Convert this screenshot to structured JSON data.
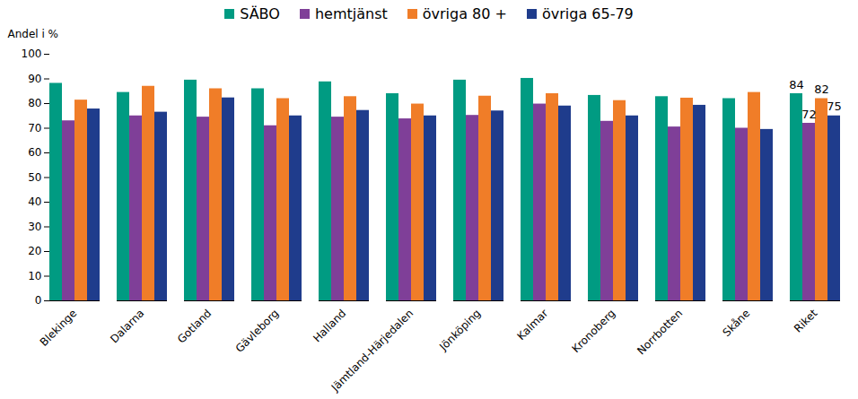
{
  "chart_data": {
    "type": "bar",
    "ylabel": "Andel i %",
    "categories": [
      "Blekinge",
      "Dalarna",
      "Gotland",
      "Gävleborg",
      "Halland",
      "Jämtland-Härjedalen",
      "Jönköping",
      "Kalmar",
      "Kronoberg",
      "Norrbotten",
      "Skåne",
      "Riket"
    ],
    "series": [
      {
        "name": "SÄBO",
        "color": "#009b82",
        "values": [
          88.2,
          84.5,
          89.5,
          86,
          88.8,
          84,
          89.5,
          90.2,
          83.3,
          82.8,
          82,
          84
        ],
        "value_labels": [
          null,
          null,
          null,
          null,
          null,
          null,
          null,
          null,
          null,
          null,
          null,
          "84"
        ]
      },
      {
        "name": "hemtjänst",
        "color": "#7f3f98",
        "values": [
          73,
          75,
          74.5,
          71,
          74.5,
          73.8,
          75.2,
          79.8,
          72.8,
          70.5,
          70,
          72
        ],
        "value_labels": [
          null,
          null,
          null,
          null,
          null,
          null,
          null,
          null,
          null,
          null,
          null,
          "72"
        ]
      },
      {
        "name": "övriga 80 +",
        "color": "#f07d28",
        "values": [
          81.4,
          87,
          86,
          82,
          82.8,
          79.8,
          83,
          84,
          81.2,
          82.2,
          84.5,
          82
        ],
        "value_labels": [
          null,
          null,
          null,
          null,
          null,
          null,
          null,
          null,
          null,
          null,
          null,
          "82"
        ]
      },
      {
        "name": "övriga 65-79",
        "color": "#1f3c8c",
        "values": [
          77.8,
          76.5,
          82.3,
          75,
          77.2,
          75,
          77,
          79,
          75,
          79.3,
          69.5,
          75
        ],
        "value_labels": [
          null,
          null,
          null,
          null,
          null,
          null,
          null,
          null,
          null,
          null,
          null,
          "75"
        ]
      }
    ],
    "ylim": [
      0,
      100
    ],
    "yticks": [
      0,
      10,
      20,
      30,
      40,
      50,
      60,
      70,
      80,
      90,
      100
    ],
    "grid": false,
    "legend": "top",
    "data_labels": true
  }
}
